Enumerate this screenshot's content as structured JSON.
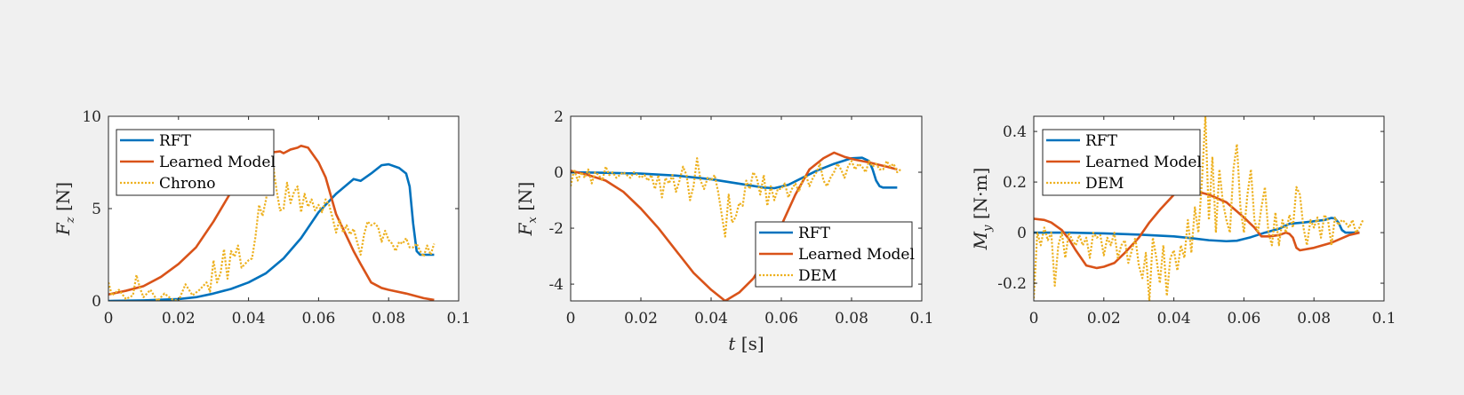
{
  "chart_data": [
    {
      "type": "line",
      "ylabel": "F_z [N]",
      "ylabel_main": "F",
      "ylabel_sub": "z",
      "ylabel_unit": " [N]",
      "xlabel": "",
      "xlim": [
        0,
        0.1
      ],
      "ylim": [
        0,
        10
      ],
      "xticks": [
        0,
        0.02,
        0.04,
        0.06,
        0.08,
        0.1
      ],
      "xtick_labels": [
        "0",
        "0.02",
        "0.04",
        "0.06",
        "0.08",
        "0.1"
      ],
      "yticks": [
        0,
        5,
        10
      ],
      "ytick_labels": [
        "0",
        "5",
        "10"
      ],
      "grid": false,
      "legend_position": "top-left",
      "series": [
        {
          "name": "RFT",
          "color": "#0072BD",
          "style": "solid",
          "x": [
            0,
            0.01,
            0.02,
            0.025,
            0.03,
            0.035,
            0.04,
            0.045,
            0.05,
            0.055,
            0.06,
            0.065,
            0.07,
            0.072,
            0.075,
            0.078,
            0.08,
            0.083,
            0.085,
            0.086,
            0.087,
            0.088,
            0.089,
            0.09,
            0.093
          ],
          "y": [
            0,
            0.03,
            0.1,
            0.2,
            0.4,
            0.65,
            1.0,
            1.5,
            2.3,
            3.4,
            4.8,
            5.8,
            6.6,
            6.5,
            6.9,
            7.35,
            7.4,
            7.2,
            6.9,
            6.2,
            4.2,
            2.7,
            2.5,
            2.5,
            2.5
          ]
        },
        {
          "name": "Learned Model",
          "color": "#D95319",
          "style": "solid",
          "x": [
            0,
            0.005,
            0.01,
            0.015,
            0.02,
            0.025,
            0.03,
            0.035,
            0.04,
            0.045,
            0.047,
            0.049,
            0.05,
            0.052,
            0.054,
            0.055,
            0.057,
            0.06,
            0.062,
            0.065,
            0.068,
            0.07,
            0.072,
            0.075,
            0.078,
            0.08,
            0.085,
            0.09,
            0.093
          ],
          "y": [
            0.35,
            0.55,
            0.8,
            1.3,
            2.0,
            2.9,
            4.3,
            5.9,
            7.3,
            8.0,
            8.05,
            8.1,
            8.0,
            8.2,
            8.3,
            8.4,
            8.3,
            7.5,
            6.7,
            4.7,
            3.5,
            2.7,
            2.0,
            1.0,
            0.7,
            0.6,
            0.4,
            0.15,
            0.05
          ]
        },
        {
          "name": "Chrono",
          "color": "#EDB120",
          "style": "dotted",
          "x": [
            0,
            0.001,
            0.003,
            0.005,
            0.007,
            0.008,
            0.009,
            0.01,
            0.012,
            0.014,
            0.016,
            0.018,
            0.02,
            0.022,
            0.024,
            0.026,
            0.028,
            0.029,
            0.03,
            0.031,
            0.032,
            0.033,
            0.034,
            0.035,
            0.036,
            0.037,
            0.038,
            0.039,
            0.04,
            0.041,
            0.042,
            0.043,
            0.044,
            0.045,
            0.046,
            0.047,
            0.048,
            0.049,
            0.05,
            0.051,
            0.052,
            0.053,
            0.054,
            0.055,
            0.056,
            0.057,
            0.058,
            0.059,
            0.06,
            0.061,
            0.062,
            0.063,
            0.064,
            0.065,
            0.066,
            0.067,
            0.068,
            0.069,
            0.07,
            0.071,
            0.072,
            0.073,
            0.074,
            0.075,
            0.076,
            0.077,
            0.078,
            0.079,
            0.08,
            0.081,
            0.082,
            0.083,
            0.084,
            0.085,
            0.086,
            0.087,
            0.088,
            0.089,
            0.09,
            0.091,
            0.092,
            0.093
          ],
          "y": [
            1.0,
            0.3,
            0.6,
            0.1,
            0.3,
            1.4,
            0.7,
            0.2,
            0.6,
            0.0,
            0.4,
            0.1,
            0.0,
            0.9,
            0.3,
            0.6,
            1.0,
            0.5,
            2.2,
            1.0,
            1.5,
            2.8,
            1.2,
            2.7,
            2.4,
            3.0,
            1.8,
            2.0,
            2.2,
            2.3,
            3.5,
            5.2,
            4.6,
            5.5,
            6.8,
            7.4,
            6.0,
            4.9,
            5.0,
            6.4,
            5.3,
            5.9,
            6.2,
            4.8,
            5.8,
            5.1,
            5.5,
            4.9,
            5.2,
            4.8,
            5.5,
            5.2,
            4.5,
            3.7,
            4.4,
            3.7,
            4.1,
            3.6,
            3.9,
            3.2,
            2.5,
            3.6,
            4.3,
            4.1,
            4.2,
            4.0,
            3.2,
            3.8,
            3.3,
            3.1,
            2.7,
            3.2,
            3.1,
            3.4,
            2.9,
            2.9,
            3.1,
            2.7,
            2.4,
            3.0,
            2.5,
            3.1
          ]
        }
      ]
    },
    {
      "type": "line",
      "ylabel": "F_x [N]",
      "ylabel_main": "F",
      "ylabel_sub": "x",
      "ylabel_unit": " [N]",
      "xlabel": "t [s]",
      "xlabel_var": "t",
      "xlabel_unit": " [s]",
      "xlim": [
        0,
        0.1
      ],
      "ylim": [
        -4.6,
        2
      ],
      "xticks": [
        0,
        0.02,
        0.04,
        0.06,
        0.08,
        0.1
      ],
      "xtick_labels": [
        "0",
        "0.02",
        "0.04",
        "0.06",
        "0.08",
        "0.1"
      ],
      "yticks": [
        2,
        0,
        -2,
        -4
      ],
      "ytick_labels": [
        "2",
        "0",
        "-2",
        "-4"
      ],
      "grid": false,
      "legend_position": "bottom-right",
      "series": [
        {
          "name": "RFT",
          "color": "#0072BD",
          "style": "solid",
          "x": [
            0,
            0.01,
            0.02,
            0.03,
            0.04,
            0.045,
            0.05,
            0.055,
            0.058,
            0.062,
            0.066,
            0.07,
            0.075,
            0.08,
            0.083,
            0.085,
            0.086,
            0.087,
            0.088,
            0.089,
            0.09,
            0.093
          ],
          "y": [
            0,
            -0.02,
            -0.05,
            -0.12,
            -0.25,
            -0.35,
            -0.45,
            -0.55,
            -0.57,
            -0.45,
            -0.2,
            0.05,
            0.3,
            0.5,
            0.52,
            0.4,
            0.1,
            -0.3,
            -0.5,
            -0.55,
            -0.55,
            -0.55
          ]
        },
        {
          "name": "Learned Model",
          "color": "#D95319",
          "style": "solid",
          "x": [
            0,
            0.005,
            0.01,
            0.015,
            0.02,
            0.025,
            0.03,
            0.035,
            0.04,
            0.044,
            0.048,
            0.052,
            0.056,
            0.06,
            0.064,
            0.068,
            0.072,
            0.075,
            0.078,
            0.081,
            0.085,
            0.09,
            0.093
          ],
          "y": [
            0.05,
            -0.1,
            -0.3,
            -0.7,
            -1.3,
            -2.0,
            -2.8,
            -3.6,
            -4.2,
            -4.6,
            -4.3,
            -3.8,
            -3.0,
            -1.9,
            -0.8,
            0.1,
            0.5,
            0.7,
            0.55,
            0.45,
            0.35,
            0.2,
            0.1
          ]
        },
        {
          "name": "DEM",
          "color": "#EDB120",
          "style": "dotted",
          "x": [
            0,
            0.001,
            0.002,
            0.003,
            0.004,
            0.005,
            0.006,
            0.007,
            0.008,
            0.009,
            0.01,
            0.011,
            0.012,
            0.013,
            0.014,
            0.015,
            0.016,
            0.017,
            0.018,
            0.019,
            0.02,
            0.021,
            0.022,
            0.023,
            0.024,
            0.025,
            0.026,
            0.027,
            0.028,
            0.029,
            0.03,
            0.031,
            0.032,
            0.033,
            0.034,
            0.035,
            0.036,
            0.037,
            0.038,
            0.039,
            0.04,
            0.041,
            0.042,
            0.043,
            0.044,
            0.045,
            0.046,
            0.047,
            0.048,
            0.049,
            0.05,
            0.051,
            0.052,
            0.053,
            0.054,
            0.055,
            0.056,
            0.057,
            0.058,
            0.059,
            0.06,
            0.061,
            0.062,
            0.063,
            0.064,
            0.065,
            0.066,
            0.067,
            0.068,
            0.069,
            0.07,
            0.071,
            0.072,
            0.073,
            0.074,
            0.075,
            0.076,
            0.077,
            0.078,
            0.079,
            0.08,
            0.081,
            0.082,
            0.083,
            0.084,
            0.085,
            0.086,
            0.087,
            0.088,
            0.089,
            0.09,
            0.091,
            0.092,
            0.093,
            0.094
          ],
          "y": [
            -0.5,
            0.1,
            -0.3,
            0.0,
            -0.2,
            0.1,
            -0.4,
            0.0,
            -0.1,
            -0.3,
            0.2,
            -0.1,
            0.0,
            -0.2,
            -0.1,
            0.0,
            -0.1,
            -0.2,
            0.0,
            -0.1,
            -0.2,
            -0.1,
            -0.3,
            -0.1,
            -0.6,
            -0.1,
            -0.9,
            -0.2,
            -0.4,
            -0.1,
            -0.7,
            -0.3,
            0.2,
            -0.1,
            -1.0,
            -0.5,
            0.5,
            -0.3,
            -0.6,
            -0.2,
            -0.3,
            -0.1,
            -0.7,
            -1.5,
            -2.3,
            -0.8,
            -1.8,
            -1.6,
            -1.1,
            -1.2,
            -0.3,
            -0.6,
            0.0,
            -0.2,
            -0.8,
            -0.1,
            -1.2,
            -0.5,
            -1.0,
            -0.6,
            -0.6,
            -0.4,
            -0.9,
            -0.6,
            -0.4,
            -0.7,
            -0.3,
            -0.1,
            -0.5,
            -0.2,
            0.0,
            0.3,
            -0.3,
            -0.5,
            -0.2,
            0.0,
            0.3,
            0.1,
            -0.2,
            0.2,
            0.4,
            0.1,
            0.3,
            0.2,
            0.0,
            0.4,
            0.2,
            0.3,
            0.1,
            0.1,
            0.4,
            0.2,
            0.3,
            0.0,
            0.1
          ]
        }
      ]
    },
    {
      "type": "line",
      "ylabel": "M_y [N·m]",
      "ylabel_main": "M",
      "ylabel_sub": "y",
      "ylabel_unit": " [N·m]",
      "xlabel": "",
      "xlim": [
        0,
        0.1
      ],
      "ylim": [
        -0.27,
        0.46
      ],
      "xticks": [
        0,
        0.02,
        0.04,
        0.06,
        0.08,
        0.1
      ],
      "xtick_labels": [
        "0",
        "0.02",
        "0.04",
        "0.06",
        "0.08",
        "0.1"
      ],
      "yticks": [
        0.4,
        0.2,
        0,
        -0.2
      ],
      "ytick_labels": [
        "0.4",
        "0.2",
        "0",
        "-0.2"
      ],
      "grid": false,
      "legend_position": "top-left",
      "series": [
        {
          "name": "RFT",
          "color": "#0072BD",
          "style": "solid",
          "x": [
            0,
            0.01,
            0.02,
            0.03,
            0.04,
            0.045,
            0.05,
            0.055,
            0.058,
            0.062,
            0.066,
            0.07,
            0.073,
            0.077,
            0.08,
            0.083,
            0.085,
            0.086,
            0.087,
            0.088,
            0.089,
            0.09,
            0.093
          ],
          "y": [
            0,
            0.0,
            -0.003,
            -0.008,
            -0.015,
            -0.022,
            -0.03,
            -0.034,
            -0.032,
            -0.018,
            0.0,
            0.015,
            0.035,
            0.04,
            0.045,
            0.05,
            0.058,
            0.056,
            0.04,
            0.01,
            0.0,
            0.0,
            0.0
          ]
        },
        {
          "name": "Learned Model",
          "color": "#D95319",
          "style": "solid",
          "x": [
            0,
            0.003,
            0.005,
            0.008,
            0.01,
            0.012,
            0.015,
            0.018,
            0.02,
            0.023,
            0.026,
            0.03,
            0.033,
            0.036,
            0.04,
            0.043,
            0.046,
            0.05,
            0.055,
            0.06,
            0.063,
            0.065,
            0.067,
            0.07,
            0.072,
            0.073,
            0.074,
            0.075,
            0.076,
            0.08,
            0.085,
            0.09,
            0.093
          ],
          "y": [
            0.055,
            0.05,
            0.04,
            0.01,
            -0.025,
            -0.07,
            -0.13,
            -0.14,
            -0.135,
            -0.12,
            -0.08,
            -0.02,
            0.04,
            0.09,
            0.15,
            0.175,
            0.165,
            0.15,
            0.12,
            0.06,
            0.02,
            -0.015,
            -0.015,
            -0.01,
            0.0,
            -0.005,
            -0.02,
            -0.06,
            -0.07,
            -0.06,
            -0.04,
            -0.01,
            0.0
          ]
        },
        {
          "name": "DEM",
          "color": "#EDB120",
          "style": "dotted",
          "x": [
            0,
            0.001,
            0.002,
            0.003,
            0.004,
            0.005,
            0.006,
            0.007,
            0.008,
            0.009,
            0.01,
            0.011,
            0.012,
            0.013,
            0.014,
            0.015,
            0.016,
            0.017,
            0.018,
            0.019,
            0.02,
            0.021,
            0.022,
            0.023,
            0.024,
            0.025,
            0.026,
            0.027,
            0.028,
            0.029,
            0.03,
            0.031,
            0.032,
            0.033,
            0.034,
            0.035,
            0.036,
            0.037,
            0.038,
            0.039,
            0.04,
            0.041,
            0.042,
            0.043,
            0.044,
            0.045,
            0.046,
            0.047,
            0.048,
            0.049,
            0.05,
            0.051,
            0.052,
            0.053,
            0.054,
            0.055,
            0.056,
            0.057,
            0.058,
            0.059,
            0.06,
            0.061,
            0.062,
            0.063,
            0.064,
            0.065,
            0.066,
            0.067,
            0.068,
            0.069,
            0.07,
            0.071,
            0.072,
            0.073,
            0.074,
            0.075,
            0.076,
            0.077,
            0.078,
            0.079,
            0.08,
            0.081,
            0.082,
            0.083,
            0.084,
            0.085,
            0.086,
            0.087,
            0.088,
            0.089,
            0.09,
            0.091,
            0.092,
            0.093,
            0.094
          ],
          "y": [
            -0.26,
            0.0,
            -0.05,
            0.02,
            -0.03,
            0.0,
            -0.21,
            -0.05,
            0.0,
            -0.1,
            0.0,
            -0.03,
            -0.05,
            -0.01,
            -0.05,
            -0.02,
            -0.1,
            0.0,
            -0.02,
            -0.01,
            -0.09,
            -0.02,
            -0.05,
            0.0,
            -0.1,
            -0.05,
            -0.03,
            -0.12,
            -0.07,
            -0.02,
            -0.13,
            -0.18,
            -0.08,
            -0.27,
            -0.02,
            -0.1,
            -0.2,
            -0.05,
            -0.25,
            -0.1,
            -0.07,
            -0.15,
            -0.05,
            -0.1,
            0.05,
            -0.08,
            0.1,
            0.0,
            0.2,
            0.46,
            0.05,
            0.3,
            0.0,
            0.25,
            0.12,
            0.05,
            0.0,
            0.25,
            0.35,
            0.1,
            0.0,
            0.15,
            0.25,
            0.05,
            0.0,
            0.1,
            0.18,
            0.0,
            -0.05,
            0.08,
            -0.05,
            0.05,
            0.0,
            0.07,
            0.02,
            0.18,
            0.15,
            0.02,
            -0.05,
            0.05,
            0.02,
            0.06,
            -0.02,
            0.07,
            0.05,
            -0.05,
            0.06,
            0.03,
            0.05,
            0.04,
            0.02,
            0.05,
            0.0,
            0.02,
            0.05
          ]
        }
      ]
    }
  ]
}
